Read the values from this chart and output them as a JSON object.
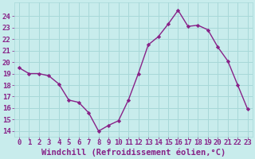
{
  "x": [
    0,
    1,
    2,
    3,
    4,
    5,
    6,
    7,
    8,
    9,
    10,
    11,
    12,
    13,
    14,
    15,
    16,
    17,
    18,
    19,
    20,
    21,
    22,
    23
  ],
  "y": [
    19.5,
    19.0,
    19.0,
    18.8,
    18.1,
    16.7,
    16.5,
    15.6,
    14.0,
    14.5,
    14.9,
    16.7,
    19.0,
    21.5,
    22.2,
    23.3,
    24.5,
    23.1,
    23.2,
    22.8,
    21.3,
    20.1,
    18.0,
    15.9
  ],
  "line_color": "#882288",
  "marker": "D",
  "marker_size": 2.2,
  "bg_color": "#C8ECEC",
  "grid_color": "#A8D8D8",
  "xlabel": "Windchill (Refroidissement éolien,°C)",
  "xlabel_fontsize": 7.5,
  "ylim": [
    13.5,
    25.2
  ],
  "xlim": [
    -0.5,
    23.5
  ],
  "tick_color": "#882288",
  "tick_fontsize": 6.5,
  "yticks": [
    14,
    15,
    16,
    17,
    18,
    19,
    20,
    21,
    22,
    23,
    24
  ],
  "linewidth": 1.0
}
